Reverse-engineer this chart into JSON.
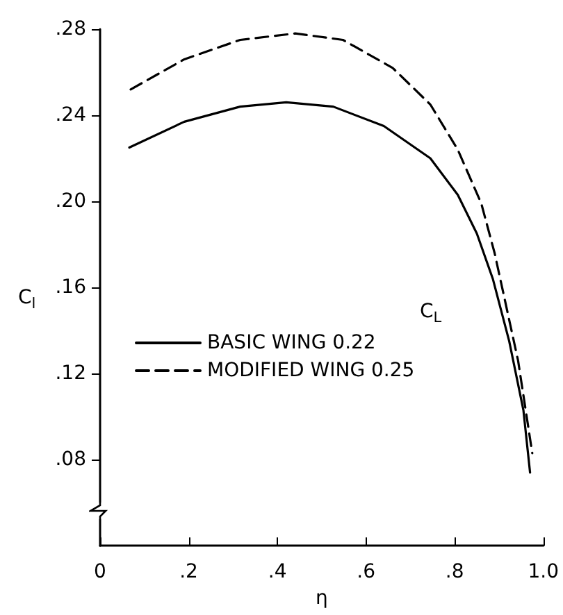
{
  "chart_data": {
    "type": "line",
    "xlabel": "η",
    "ylabel": "C$_{l}$",
    "legend_title": "C$_{L}$",
    "xlim": [
      0,
      1
    ],
    "xticks": [
      {
        "value": 0,
        "label": "0"
      },
      {
        "value": 0.2,
        "label": ".2"
      },
      {
        "value": 0.4,
        "label": ".4"
      },
      {
        "value": 0.6,
        "label": ".6"
      },
      {
        "value": 0.8,
        "label": ".8"
      },
      {
        "value": 1.0,
        "label": "1.0"
      }
    ],
    "ylim": [
      0.04,
      0.28
    ],
    "yticks": [
      {
        "value": 0.08,
        "label": ".08"
      },
      {
        "value": 0.12,
        "label": ".12"
      },
      {
        "value": 0.16,
        "label": ".16"
      },
      {
        "value": 0.2,
        "label": ".20"
      },
      {
        "value": 0.24,
        "label": ".24"
      },
      {
        "value": 0.28,
        "label": ".28"
      }
    ],
    "grid": false,
    "legend": "left",
    "marker": "none",
    "series": [
      {
        "name": "BASIC WING 0.22",
        "color": "#000000",
        "line_style": "solid",
        "x": [
          0.066,
          0.19,
          0.316,
          0.42,
          0.526,
          0.64,
          0.745,
          0.807,
          0.85,
          0.886,
          0.923,
          0.955,
          0.97
        ],
        "values": [
          0.225,
          0.237,
          0.244,
          0.246,
          0.244,
          0.235,
          0.22,
          0.203,
          0.185,
          0.164,
          0.135,
          0.103,
          0.074
        ]
      },
      {
        "name": "MODIFIED WING 0.25",
        "color": "#000000",
        "line_style": "dashed",
        "x": [
          0.069,
          0.19,
          0.316,
          0.44,
          0.548,
          0.66,
          0.745,
          0.807,
          0.86,
          0.89,
          0.943,
          0.975
        ],
        "values": [
          0.252,
          0.266,
          0.275,
          0.278,
          0.275,
          0.262,
          0.245,
          0.224,
          0.199,
          0.176,
          0.126,
          0.083
        ]
      }
    ]
  }
}
